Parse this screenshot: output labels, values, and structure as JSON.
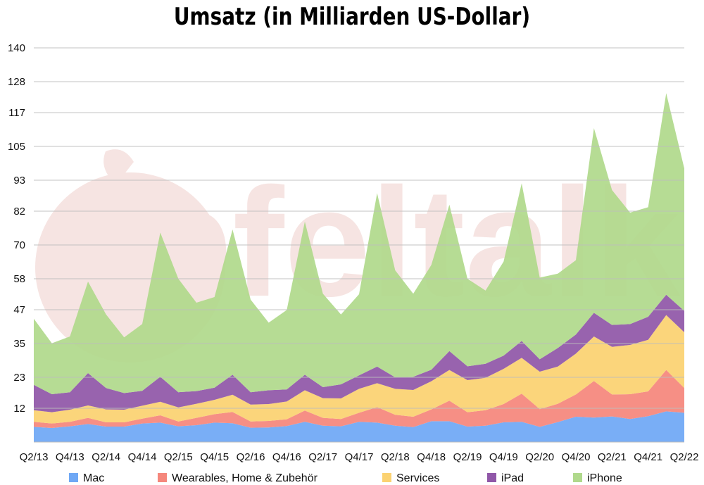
{
  "chart_data": {
    "type": "area",
    "stacked": true,
    "title": "Umsatz (in Milliarden US-Dollar)",
    "xlabel": "",
    "ylabel": "",
    "ylim": [
      0,
      140
    ],
    "grid": true,
    "legend_position": "bottom",
    "watermark": "apfeltalk",
    "y_ticks": [
      "12",
      "23",
      "35",
      "47",
      "58",
      "70",
      "82",
      "93",
      "105",
      "117",
      "128",
      "140"
    ],
    "x_tick_labels": [
      "Q2/13",
      "Q4/13",
      "Q2/14",
      "Q4/14",
      "Q2/15",
      "Q4/15",
      "Q2/16",
      "Q4/16",
      "Q2/17",
      "Q4/17",
      "Q2/18",
      "Q4/18",
      "Q2/19",
      "Q4/19",
      "Q2/20",
      "Q4/20",
      "Q2/21",
      "Q4/21",
      "Q2/22"
    ],
    "x": [
      "Q2/13",
      "Q3/13",
      "Q4/13",
      "Q1/14",
      "Q2/14",
      "Q3/14",
      "Q4/14",
      "Q1/15",
      "Q2/15",
      "Q3/15",
      "Q4/15",
      "Q1/16",
      "Q2/16",
      "Q3/16",
      "Q4/16",
      "Q1/17",
      "Q2/17",
      "Q3/17",
      "Q4/17",
      "Q1/18",
      "Q2/18",
      "Q3/18",
      "Q4/18",
      "Q1/19",
      "Q2/19",
      "Q3/19",
      "Q4/19",
      "Q1/20",
      "Q2/20",
      "Q3/20",
      "Q4/20",
      "Q1/21",
      "Q2/21",
      "Q3/21",
      "Q4/21",
      "Q1/22",
      "Q2/22"
    ],
    "series": [
      {
        "name": "Mac",
        "color": "#6fa8f5",
        "values": [
          5.4,
          5.0,
          5.6,
          6.4,
          5.5,
          5.5,
          6.6,
          6.9,
          5.6,
          6.0,
          6.9,
          6.7,
          5.1,
          5.2,
          5.7,
          7.2,
          5.8,
          5.6,
          7.2,
          6.9,
          5.8,
          5.3,
          7.4,
          7.4,
          5.5,
          5.8,
          7.0,
          7.2,
          5.4,
          7.1,
          9.0,
          8.7,
          9.1,
          8.2,
          9.2,
          10.9,
          10.4
        ]
      },
      {
        "name": "Wearables, Home & Zubehör",
        "color": "#f5877c",
        "values": [
          1.8,
          1.6,
          1.6,
          2.2,
          1.5,
          1.5,
          1.7,
          2.6,
          1.7,
          2.6,
          3.0,
          4.0,
          2.2,
          2.3,
          2.4,
          4.0,
          2.8,
          2.6,
          3.2,
          5.5,
          3.9,
          3.7,
          4.2,
          7.3,
          5.1,
          5.5,
          6.5,
          10.0,
          6.3,
          6.5,
          7.9,
          13.0,
          7.8,
          8.8,
          8.8,
          14.7,
          8.8
        ]
      },
      {
        "name": "Services",
        "color": "#fbd271",
        "values": [
          4.1,
          4.0,
          4.3,
          4.4,
          4.6,
          4.5,
          4.6,
          4.8,
          5.0,
          5.0,
          5.1,
          6.1,
          6.0,
          6.0,
          6.3,
          7.2,
          7.0,
          7.3,
          8.5,
          8.5,
          9.2,
          9.5,
          10.0,
          10.9,
          11.4,
          11.5,
          12.5,
          12.7,
          13.3,
          13.2,
          14.5,
          15.8,
          16.9,
          17.5,
          18.3,
          19.5,
          19.8
        ]
      },
      {
        "name": "iPad",
        "color": "#9057a8",
        "values": [
          9.0,
          6.4,
          6.2,
          11.5,
          7.6,
          5.9,
          5.3,
          8.9,
          5.4,
          4.5,
          4.3,
          7.1,
          4.4,
          4.9,
          4.3,
          5.5,
          3.9,
          5.0,
          4.8,
          5.9,
          4.1,
          4.7,
          4.1,
          6.7,
          4.9,
          5.0,
          4.7,
          6.0,
          4.4,
          6.6,
          6.8,
          8.4,
          7.8,
          7.4,
          8.2,
          7.2,
          7.6
        ]
      },
      {
        "name": "iPhone",
        "color": "#b0d98c",
        "values": [
          23.5,
          18.1,
          19.8,
          32.5,
          26.1,
          19.8,
          23.7,
          51.2,
          40.3,
          31.4,
          32.2,
          51.6,
          32.9,
          24.0,
          28.2,
          54.4,
          33.2,
          24.8,
          28.8,
          61.6,
          38.0,
          29.5,
          37.2,
          52.0,
          31.1,
          26.0,
          33.4,
          56.0,
          29.0,
          26.4,
          26.4,
          65.6,
          47.9,
          39.6,
          38.9,
          71.6,
          50.6
        ]
      }
    ]
  }
}
